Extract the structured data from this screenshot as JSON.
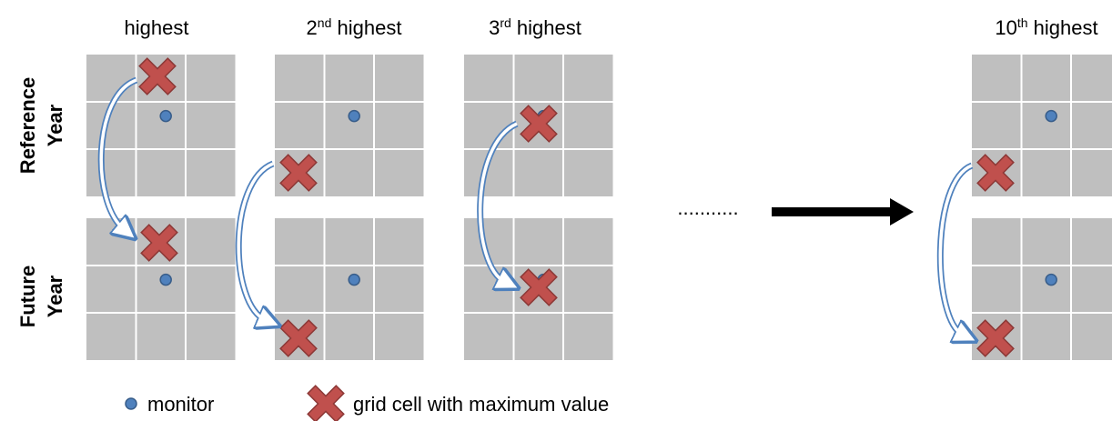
{
  "headers": [
    {
      "base": "highest"
    },
    {
      "base": "2",
      "sup": "nd",
      "rest": " highest"
    },
    {
      "base": "3",
      "sup": "rd",
      "rest": " highest"
    },
    {
      "base": "10",
      "sup": "th",
      "rest": " highest"
    }
  ],
  "row_labels": [
    {
      "lines": [
        "Reference",
        "Year"
      ]
    },
    {
      "lines": [
        "Future",
        "Year"
      ]
    }
  ],
  "ellipsis": "...........",
  "legend": {
    "monitor": "monitor",
    "max_cell": "grid cell with maximum value"
  }
}
